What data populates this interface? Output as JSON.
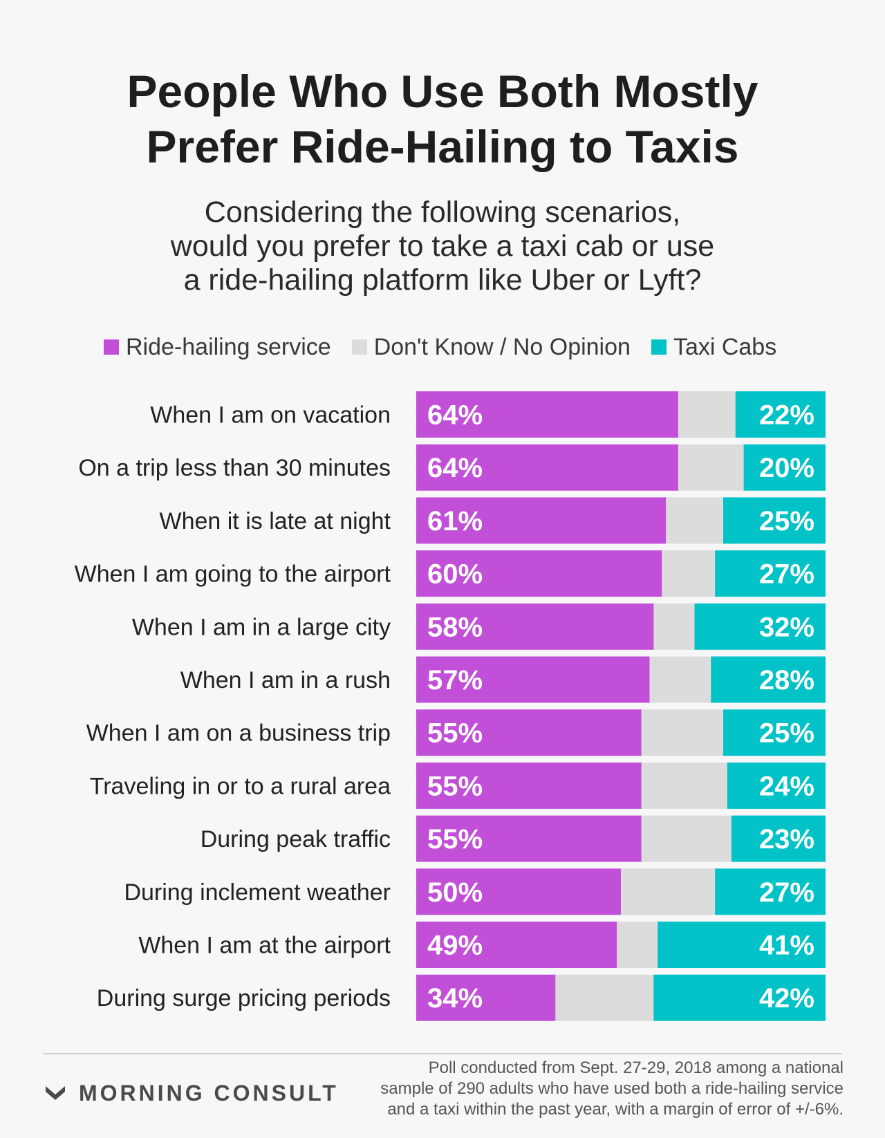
{
  "header": {
    "title_lines": [
      "People Who Use Both Mostly",
      "Prefer Ride-Hailing to Taxis"
    ],
    "subtitle_lines": [
      "Considering the following scenarios,",
      "would you prefer to take a taxi cab or use",
      "a ride-hailing platform like Uber or Lyft?"
    ]
  },
  "legend": [
    {
      "label": "Ride-hailing service",
      "color": "#c24fd8"
    },
    {
      "label": "Don't Know / No Opinion",
      "color": "#dcdcdc"
    },
    {
      "label": "Taxi Cabs",
      "color": "#00c2c7"
    }
  ],
  "chart_data": {
    "type": "bar",
    "orientation": "horizontal",
    "stacked": true,
    "categories": [
      "When I am on vacation",
      "On a trip less than 30 minutes",
      "When it is late at night",
      "When I am going to the airport",
      "When I am in a large city",
      "When I am in a rush",
      "When I am on a business trip",
      "Traveling in or to a rural area",
      "During peak traffic",
      "During inclement weather",
      "When I am at the airport",
      "During surge pricing periods"
    ],
    "series": [
      {
        "name": "Ride-hailing service",
        "color": "#c24fd8",
        "values": [
          64,
          64,
          61,
          60,
          58,
          57,
          55,
          55,
          55,
          50,
          49,
          34
        ]
      },
      {
        "name": "Don't Know / No Opinion",
        "color": "#dcdcdc",
        "values": [
          14,
          16,
          14,
          13,
          10,
          15,
          20,
          21,
          22,
          23,
          10,
          24
        ]
      },
      {
        "name": "Taxi Cabs",
        "color": "#00c2c7",
        "values": [
          22,
          20,
          25,
          27,
          32,
          28,
          25,
          24,
          23,
          27,
          41,
          42
        ]
      }
    ],
    "value_labels": {
      "ride_hailing": [
        "64%",
        "64%",
        "61%",
        "60%",
        "58%",
        "57%",
        "55%",
        "55%",
        "55%",
        "50%",
        "49%",
        "34%"
      ],
      "taxi": [
        "22%",
        "20%",
        "25%",
        "27%",
        "32%",
        "28%",
        "25%",
        "24%",
        "23%",
        "27%",
        "41%",
        "42%"
      ]
    },
    "xlim": [
      0,
      100
    ]
  },
  "footer": {
    "brand": "MORNING CONSULT",
    "note_lines": [
      "Poll conducted from Sept. 27-29, 2018 among a national",
      "sample of 290 adults who have used both a ride-hailing service",
      "and a taxi within the past year, with a margin of error of +/-6%."
    ]
  }
}
